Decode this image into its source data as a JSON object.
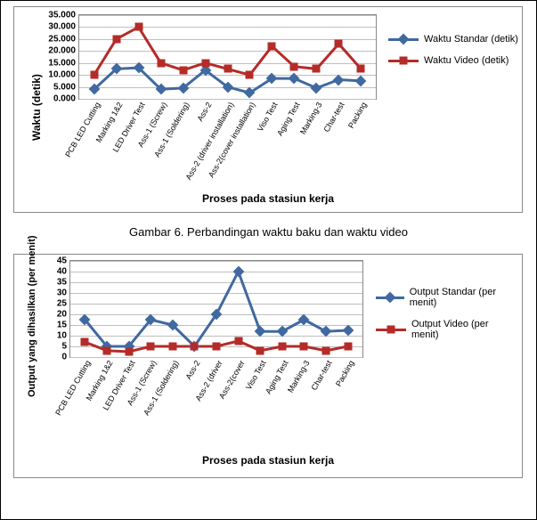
{
  "caption1": "Gambar 6. Perbandingan waktu baku dan waktu video",
  "chart1": {
    "type": "line",
    "yTitle": "Waktu (detik)",
    "xTitle": "Proses pada stasiun kerja",
    "ylim": [
      0,
      35.0
    ],
    "ytick_step": 5.0,
    "ytick_format": "fixed3",
    "yticks": [
      "0.000",
      "5.000",
      "10.000",
      "15.000",
      "20.000",
      "25.000",
      "30.000",
      "35.000"
    ],
    "categories": [
      "PCB LED Cutting",
      "Marking 1&2",
      "LED Driver Test",
      "Ass-1 (Screw)",
      "Ass-1 (Soldering)",
      "Ass-2",
      "Ass-2 (driver installation)",
      "Ass-2(cover installation)",
      "Viso Test",
      "Aging Test",
      "Marking-3",
      "Char-test",
      "Packing"
    ],
    "series": [
      {
        "name": "Waktu Standar (detik)",
        "color": "#4069a0",
        "marker": "diamond",
        "values": [
          4.0,
          12.5,
          13.0,
          4.0,
          4.5,
          12.0,
          5.0,
          2.5,
          8.5,
          8.5,
          4.5,
          8.0,
          7.5
        ]
      },
      {
        "name": "Waktu Video (detik)",
        "color": "#b52b28",
        "marker": "square",
        "values": [
          10.0,
          25.0,
          30.0,
          15.0,
          12.0,
          15.0,
          12.5,
          10.0,
          22.0,
          13.5,
          12.5,
          23.0,
          12.5
        ]
      }
    ],
    "line_width": 3,
    "background_color": "#ffffff",
    "grid_color": "#bfbfbf",
    "title_fontsize": 12,
    "tick_fontsize": 10
  },
  "chart2": {
    "type": "line",
    "yTitle": "Output yang dihasilkan (per menit)",
    "xTitle": "Proses pada stasiun kerja",
    "ylim": [
      0,
      45
    ],
    "ytick_step": 5,
    "ytick_format": "int",
    "yticks": [
      "0",
      "5",
      "10",
      "15",
      "20",
      "25",
      "30",
      "35",
      "40",
      "45"
    ],
    "categories": [
      "PCB LED Cutting",
      "Marking 1&2",
      "LED Driver Test",
      "Ass-1 (Screw)",
      "Ass-1 (Soldering)",
      "Ass-2",
      "Ass-2 (driver",
      "Ass-2(cover",
      "Viso Test",
      "Aging Test",
      "Marking-3",
      "Char-test",
      "Packing"
    ],
    "series": [
      {
        "name": "Output Standar (per menit)",
        "color": "#4069a0",
        "marker": "diamond",
        "values": [
          17.5,
          5.0,
          5.0,
          17.5,
          15.0,
          5.0,
          20.0,
          40.0,
          12.0,
          12.0,
          17.5,
          12.0,
          12.5
        ]
      },
      {
        "name": "Output Video (per menit)",
        "color": "#b52b28",
        "marker": "square",
        "values": [
          7.0,
          3.0,
          2.5,
          5.0,
          5.0,
          5.0,
          5.0,
          7.5,
          3.0,
          5.0,
          5.0,
          3.0,
          5.0
        ]
      }
    ],
    "line_width": 3,
    "background_color": "#ffffff",
    "grid_color": "#bfbfbf",
    "title_fontsize": 12,
    "tick_fontsize": 10
  }
}
